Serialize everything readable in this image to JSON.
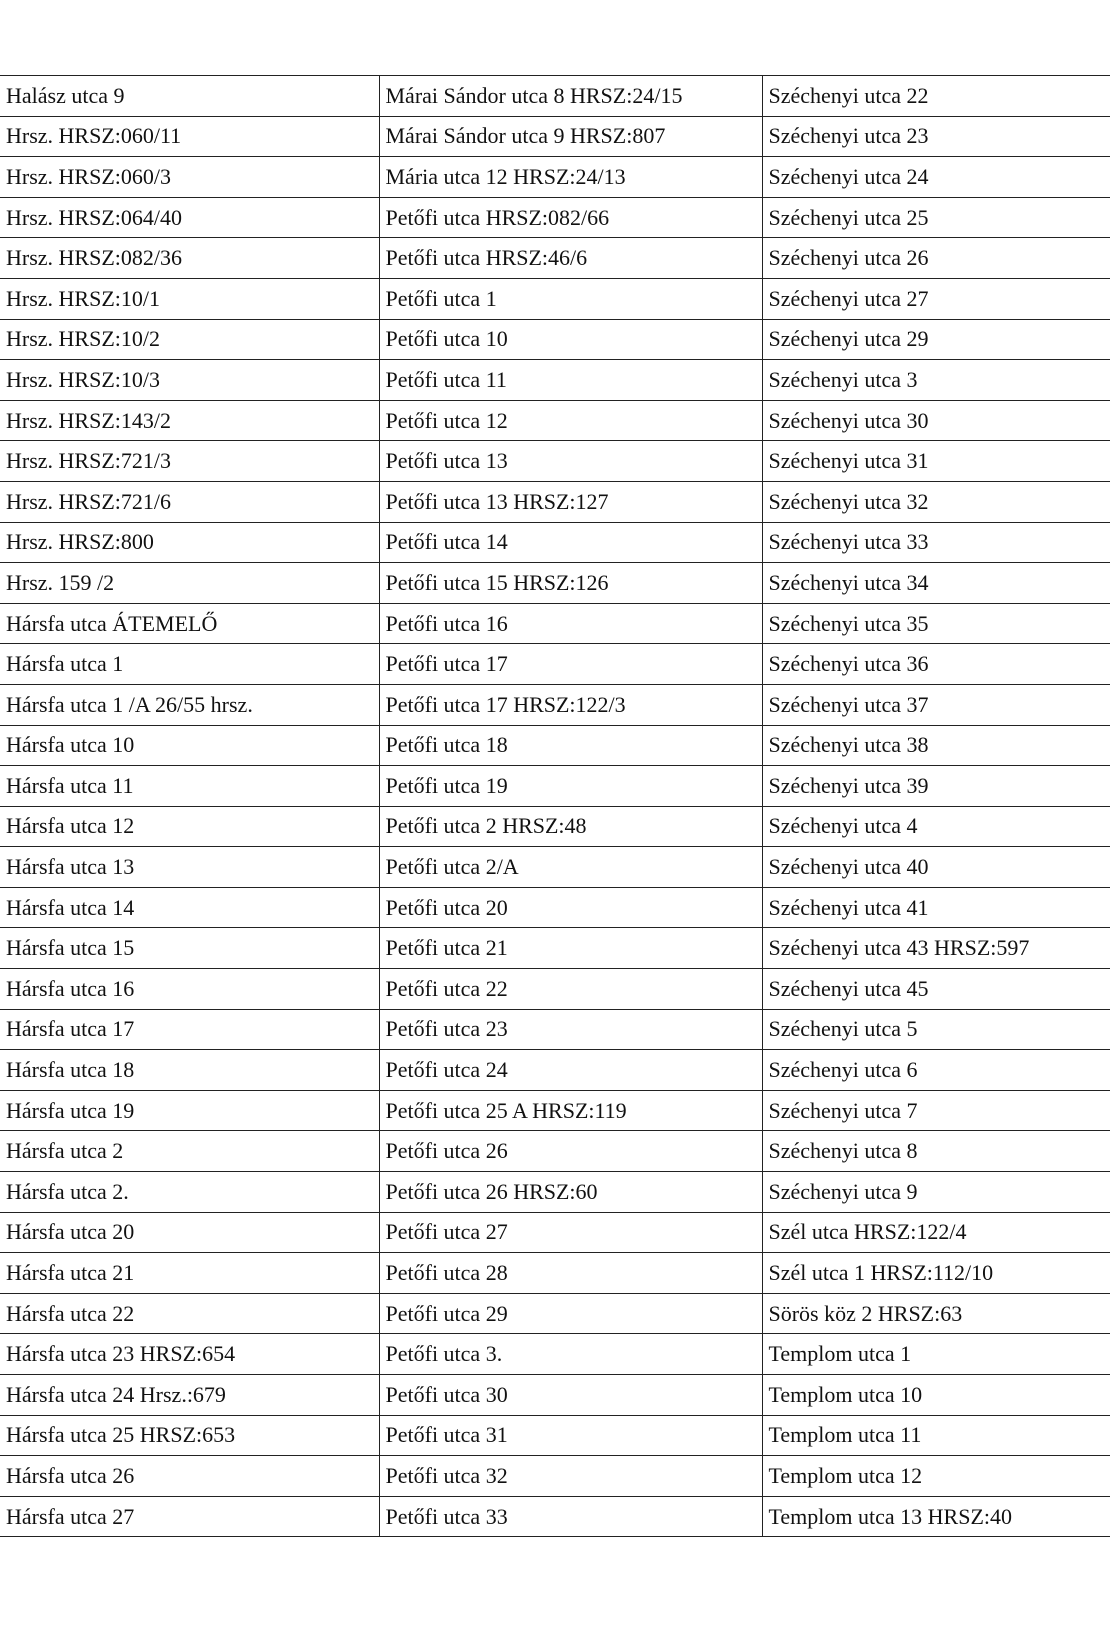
{
  "table": {
    "rows": [
      [
        "Halász utca 9",
        "Márai Sándor utca 8 HRSZ:24/15",
        "Széchenyi utca 22"
      ],
      [
        "Hrsz. HRSZ:060/11",
        "Márai Sándor utca 9 HRSZ:807",
        "Széchenyi utca 23"
      ],
      [
        "Hrsz. HRSZ:060/3",
        "Mária utca 12 HRSZ:24/13",
        "Széchenyi utca 24"
      ],
      [
        "Hrsz. HRSZ:064/40",
        "Petőfi utca HRSZ:082/66",
        "Széchenyi utca 25"
      ],
      [
        "Hrsz. HRSZ:082/36",
        "Petőfi utca HRSZ:46/6",
        "Széchenyi utca 26"
      ],
      [
        "Hrsz. HRSZ:10/1",
        "Petőfi utca 1",
        "Széchenyi utca 27"
      ],
      [
        "Hrsz. HRSZ:10/2",
        "Petőfi utca 10",
        "Széchenyi utca 29"
      ],
      [
        "Hrsz. HRSZ:10/3",
        "Petőfi utca 11",
        "Széchenyi utca 3"
      ],
      [
        "Hrsz. HRSZ:143/2",
        "Petőfi utca 12",
        "Széchenyi utca 30"
      ],
      [
        "Hrsz. HRSZ:721/3",
        "Petőfi utca 13",
        "Széchenyi utca 31"
      ],
      [
        "Hrsz. HRSZ:721/6",
        "Petőfi utca 13 HRSZ:127",
        "Széchenyi utca 32"
      ],
      [
        "Hrsz. HRSZ:800",
        "Petőfi utca 14",
        "Széchenyi utca 33"
      ],
      [
        "Hrsz. 159 /2",
        "Petőfi utca 15 HRSZ:126",
        "Széchenyi utca 34"
      ],
      [
        "Hársfa utca ÁTEMELŐ",
        "Petőfi utca 16",
        "Széchenyi utca 35"
      ],
      [
        "Hársfa utca 1",
        "Petőfi utca 17",
        "Széchenyi utca 36"
      ],
      [
        "Hársfa utca 1 /A 26/55 hrsz.",
        "Petőfi utca 17 HRSZ:122/3",
        "Széchenyi utca 37"
      ],
      [
        "Hársfa utca 10",
        "Petőfi utca 18",
        "Széchenyi utca 38"
      ],
      [
        "Hársfa utca 11",
        "Petőfi utca 19",
        "Széchenyi utca 39"
      ],
      [
        "Hársfa utca 12",
        "Petőfi utca 2 HRSZ:48",
        "Széchenyi utca 4"
      ],
      [
        "Hársfa utca 13",
        "Petőfi utca 2/A",
        "Széchenyi utca 40"
      ],
      [
        "Hársfa utca 14",
        "Petőfi utca 20",
        "Széchenyi utca 41"
      ],
      [
        "Hársfa utca 15",
        "Petőfi utca 21",
        "Széchenyi utca 43 HRSZ:597"
      ],
      [
        "Hársfa utca 16",
        "Petőfi utca 22",
        "Széchenyi utca 45"
      ],
      [
        "Hársfa utca 17",
        "Petőfi utca 23",
        "Széchenyi utca 5"
      ],
      [
        "Hársfa utca 18",
        "Petőfi utca 24",
        "Széchenyi utca 6"
      ],
      [
        "Hársfa utca 19",
        "Petőfi utca 25 A HRSZ:119",
        "Széchenyi utca 7"
      ],
      [
        "Hársfa utca 2",
        "Petőfi utca 26",
        "Széchenyi utca 8"
      ],
      [
        "Hársfa utca 2.",
        "Petőfi utca 26 HRSZ:60",
        "Széchenyi utca 9"
      ],
      [
        "Hársfa utca 20",
        "Petőfi utca 27",
        "Szél utca HRSZ:122/4"
      ],
      [
        "Hársfa utca 21",
        "Petőfi utca 28",
        "Szél utca 1 HRSZ:112/10"
      ],
      [
        "Hársfa utca 22",
        "Petőfi utca 29",
        "Sörös köz 2 HRSZ:63"
      ],
      [
        "Hársfa utca 23 HRSZ:654",
        "Petőfi utca 3.",
        "Templom utca 1"
      ],
      [
        "Hársfa utca 24 Hrsz.:679",
        "Petőfi utca 30",
        "Templom utca 10"
      ],
      [
        "Hársfa utca 25 HRSZ:653",
        "Petőfi utca 31",
        "Templom utca 11"
      ],
      [
        "Hársfa utca 26",
        "Petőfi utca 32",
        "Templom utca 12"
      ],
      [
        "Hársfa utca 27",
        "Petőfi utca 33",
        "Templom utca 13 HRSZ:40"
      ]
    ]
  }
}
